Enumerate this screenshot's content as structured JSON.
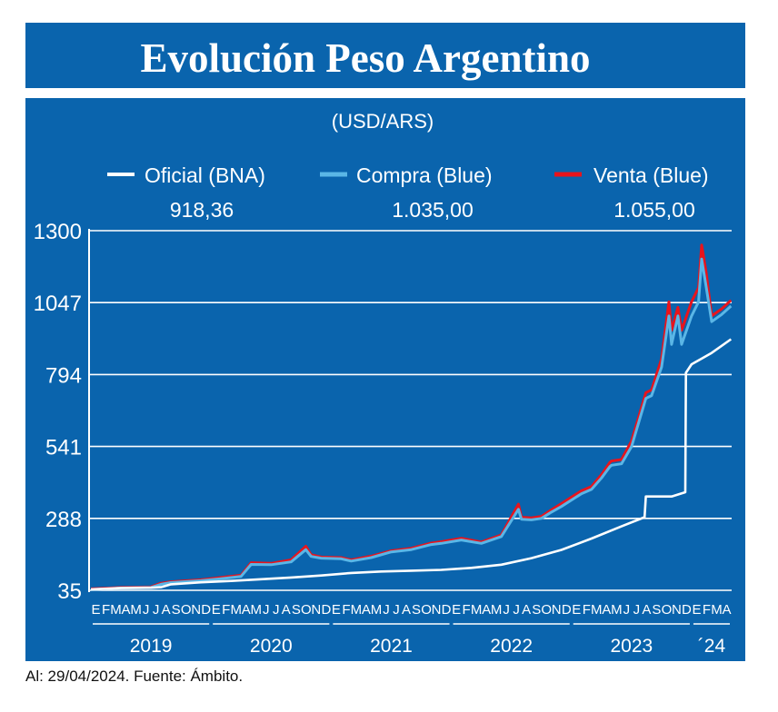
{
  "title": "Evolución Peso Argentino",
  "footer": "Al: 29/04/2024. Fuente: Ámbito.",
  "colors": {
    "background": "#0a64ad",
    "title_bar": "#0a64ad",
    "oficial": "#ffffff",
    "compra": "#5ab6e6",
    "venta": "#e8141c",
    "grid": "#ffffff"
  },
  "chart_data": {
    "type": "line",
    "subtitle": "(USD/ARS)",
    "ylim": [
      35,
      1300
    ],
    "yticks": [
      35,
      288,
      541,
      794,
      1047,
      1300
    ],
    "ytick_labels": [
      "35",
      "288",
      "541",
      "794",
      "1047",
      "1300"
    ],
    "grid": "horizontal",
    "legend_position": "top",
    "month_labels": [
      "E",
      "F",
      "M",
      "A",
      "M",
      "J",
      "J",
      "A",
      "S",
      "O",
      "N",
      "D",
      "E",
      "F",
      "M",
      "A",
      "M",
      "J",
      "J",
      "A",
      "S",
      "O",
      "N",
      "D",
      "E",
      "F",
      "M",
      "A",
      "M",
      "J",
      "J",
      "A",
      "S",
      "O",
      "N",
      "D",
      "E",
      "F",
      "M",
      "A",
      "M",
      "J",
      "J",
      "A",
      "S",
      "O",
      "N",
      "D",
      "E",
      "F",
      "M",
      "A",
      "M",
      "J",
      "J",
      "A",
      "S",
      "O",
      "N",
      "D",
      "E",
      "F",
      "M",
      "A"
    ],
    "year_labels": [
      "2019",
      "2020",
      "2021",
      "2022",
      "2023",
      "´24"
    ],
    "series": [
      {
        "name": "Oficial (BNA)",
        "last_value": "918,36",
        "x": [
          "2019-01",
          "2019-04",
          "2019-07",
          "2019-08",
          "2019-09",
          "2019-12",
          "2020-03",
          "2020-06",
          "2020-09",
          "2020-12",
          "2021-03",
          "2021-06",
          "2021-09",
          "2021-12",
          "2022-03",
          "2022-06",
          "2022-09",
          "2022-12",
          "2023-03",
          "2023-06",
          "2023-08-10",
          "2023-08-14",
          "2023-11",
          "2023-12-12",
          "2023-12-14",
          "2024-01",
          "2024-02",
          "2024-03",
          "2024-04-29"
        ],
        "y": [
          38,
          43,
          44,
          46,
          56,
          63,
          68,
          74,
          80,
          87,
          96,
          101,
          104,
          107,
          114,
          125,
          148,
          177,
          217,
          260,
          292,
          365,
          365,
          380,
          800,
          830,
          850,
          870,
          918.36
        ]
      },
      {
        "name": "Compra (Blue)",
        "last_value": "1.035,00",
        "x": [
          "2019-01",
          "2019-04",
          "2019-07",
          "2019-08",
          "2019-09",
          "2019-12",
          "2020-02",
          "2020-04",
          "2020-05",
          "2020-07",
          "2020-09",
          "2020-10-15",
          "2020-11",
          "2020-12",
          "2021-02",
          "2021-03",
          "2021-05",
          "2021-07",
          "2021-09",
          "2021-11",
          "2021-12",
          "2022-02",
          "2022-04",
          "2022-06",
          "2022-07-22",
          "2022-08",
          "2022-09",
          "2022-10",
          "2022-11",
          "2022-12",
          "2023-02",
          "2023-03",
          "2023-04",
          "2023-04-26",
          "2023-05",
          "2023-06",
          "2023-07",
          "2023-08-14",
          "2023-09",
          "2023-10",
          "2023-10-23",
          "2023-11",
          "2023-11-20",
          "2023-12",
          "2024-01",
          "2024-01-22",
          "2024-02",
          "2024-02-15",
          "2024-03",
          "2024-04",
          "2024-04-29"
        ],
        "y": [
          38,
          43,
          45,
          56,
          62,
          69,
          76,
          84,
          126,
          125,
          135,
          178,
          154,
          148,
          146,
          138,
          150,
          170,
          178,
          196,
          200,
          212,
          200,
          224,
          320,
          285,
          283,
          288,
          310,
          330,
          375,
          390,
          430,
          470,
          475,
          480,
          540,
          710,
          720,
          820,
          1000,
          900,
          1000,
          900,
          1000,
          1050,
          1200,
          1100,
          980,
          1005,
          1035
        ]
      },
      {
        "name": "Venta (Blue)",
        "last_value": "1.055,00",
        "x": [
          "2019-01",
          "2019-04",
          "2019-07",
          "2019-08",
          "2019-09",
          "2019-12",
          "2020-02",
          "2020-04",
          "2020-05",
          "2020-07",
          "2020-09",
          "2020-10-15",
          "2020-11",
          "2020-12",
          "2021-02",
          "2021-03",
          "2021-05",
          "2021-07",
          "2021-09",
          "2021-11",
          "2021-12",
          "2022-02",
          "2022-04",
          "2022-06",
          "2022-07-22",
          "2022-08",
          "2022-09",
          "2022-10",
          "2022-11",
          "2022-12",
          "2023-02",
          "2023-03",
          "2023-04",
          "2023-04-26",
          "2023-05",
          "2023-06",
          "2023-07",
          "2023-08-14",
          "2023-09",
          "2023-10",
          "2023-10-23",
          "2023-11",
          "2023-11-20",
          "2023-12",
          "2024-01",
          "2024-01-22",
          "2024-02",
          "2024-02-15",
          "2024-03",
          "2024-04",
          "2024-04-29"
        ],
        "y": [
          40,
          45,
          47,
          60,
          65,
          72,
          80,
          88,
          132,
          130,
          142,
          190,
          160,
          152,
          150,
          142,
          155,
          174,
          183,
          201,
          206,
          218,
          205,
          230,
          338,
          292,
          290,
          295,
          318,
          340,
          385,
          400,
          442,
          485,
          490,
          495,
          560,
          730,
          740,
          850,
          1050,
          950,
          1030,
          950,
          1050,
          1100,
          1250,
          1150,
          1000,
          1025,
          1055
        ]
      }
    ]
  }
}
